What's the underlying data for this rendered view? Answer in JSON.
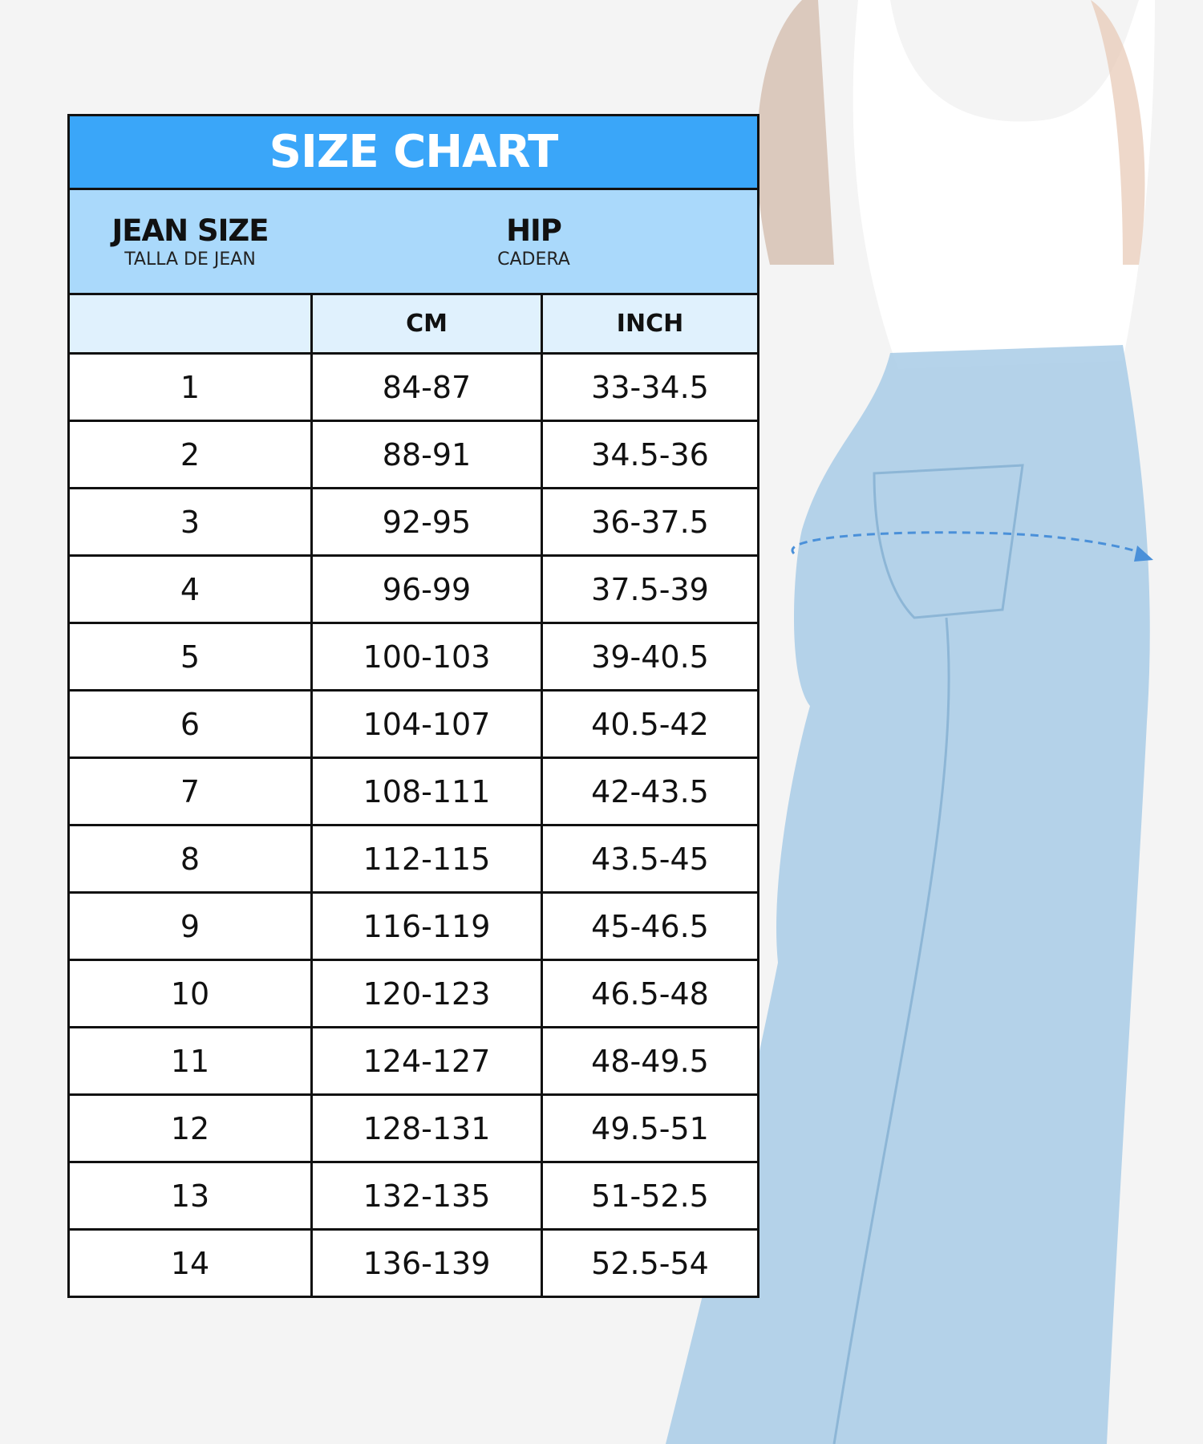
{
  "title": "SIZE CHART",
  "header": {
    "size_label": "JEAN SIZE",
    "size_sublabel": "TALLA DE JEAN",
    "hip_label": "HIP",
    "hip_sublabel": "CADERA"
  },
  "columns": {
    "cm": "CM",
    "inch": "INCH"
  },
  "rows": [
    {
      "size": "1",
      "cm": "84-87",
      "inch": "33-34.5"
    },
    {
      "size": "2",
      "cm": "88-91",
      "inch": "34.5-36"
    },
    {
      "size": "3",
      "cm": "92-95",
      "inch": "36-37.5"
    },
    {
      "size": "4",
      "cm": "96-99",
      "inch": "37.5-39"
    },
    {
      "size": "5",
      "cm": "100-103",
      "inch": "39-40.5"
    },
    {
      "size": "6",
      "cm": "104-107",
      "inch": "40.5-42"
    },
    {
      "size": "7",
      "cm": "108-111",
      "inch": "42-43.5"
    },
    {
      "size": "8",
      "cm": "112-115",
      "inch": "43.5-45"
    },
    {
      "size": "9",
      "cm": "116-119",
      "inch": "45-46.5"
    },
    {
      "size": "10",
      "cm": "120-123",
      "inch": "46.5-48"
    },
    {
      "size": "11",
      "cm": "124-127",
      "inch": "48-49.5"
    },
    {
      "size": "12",
      "cm": "128-131",
      "inch": "49.5-51"
    },
    {
      "size": "13",
      "cm": "132-135",
      "inch": "51-52.5"
    },
    {
      "size": "14",
      "cm": "136-139",
      "inch": "52.5-54"
    }
  ],
  "colors": {
    "title_bg": "#3aa6f9",
    "header_bg": "#aad9fb",
    "subheader_bg": "#e0f1fd",
    "measure_line": "#4a90d9"
  }
}
